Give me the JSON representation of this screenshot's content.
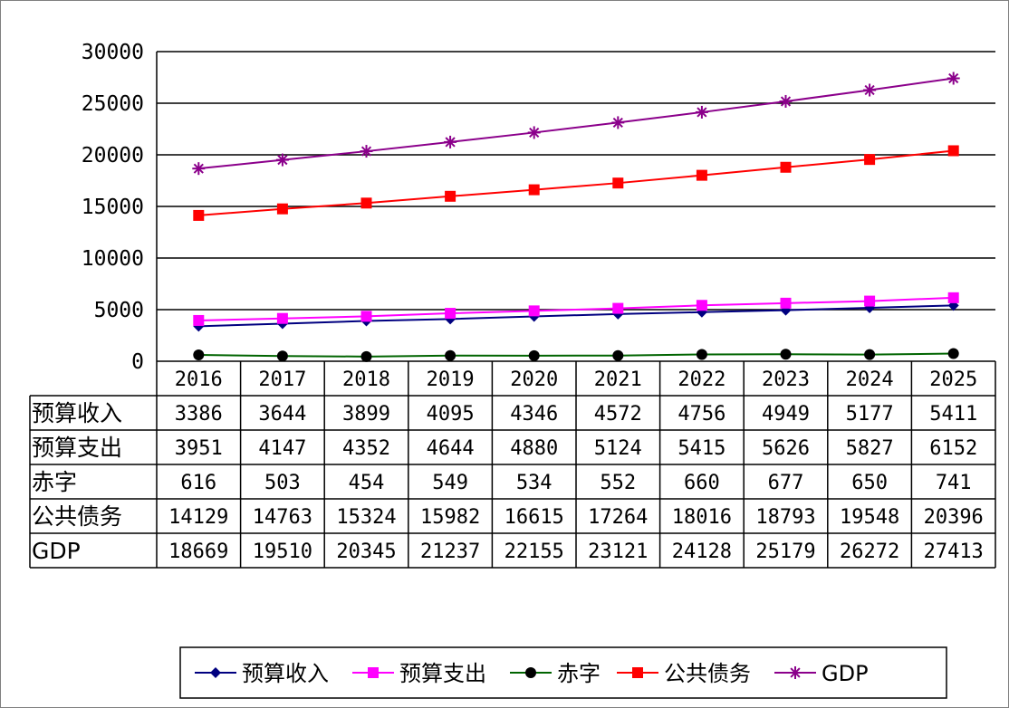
{
  "chart_data": {
    "type": "line",
    "categories": [
      "2016",
      "2017",
      "2018",
      "2019",
      "2020",
      "2021",
      "2022",
      "2023",
      "2024",
      "2025"
    ],
    "ylim": [
      0,
      30000
    ],
    "yticks": [
      0,
      5000,
      10000,
      15000,
      20000,
      25000,
      30000
    ],
    "grid": true,
    "legend_position": "bottom",
    "series": [
      {
        "name": "预算收入",
        "color": "#000080",
        "marker": "diamond",
        "values": [
          3386,
          3644,
          3899,
          4095,
          4346,
          4572,
          4756,
          4949,
          5177,
          5411
        ]
      },
      {
        "name": "预算支出",
        "color": "#ff00ff",
        "marker": "square",
        "values": [
          3951,
          4147,
          4352,
          4644,
          4880,
          5124,
          5415,
          5626,
          5827,
          6152
        ]
      },
      {
        "name": "赤字",
        "color": "#006400",
        "marker": "circle",
        "values": [
          616,
          503,
          454,
          549,
          534,
          552,
          660,
          677,
          650,
          741
        ]
      },
      {
        "name": "公共债务",
        "color": "#ff0000",
        "marker": "square",
        "values": [
          14129,
          14763,
          15324,
          15982,
          16615,
          17264,
          18016,
          18793,
          19548,
          20396
        ]
      },
      {
        "name": "GDP",
        "color": "#8b008b",
        "marker": "star",
        "values": [
          18669,
          19510,
          20345,
          21237,
          22155,
          23121,
          24128,
          25179,
          26272,
          27413
        ]
      }
    ]
  }
}
